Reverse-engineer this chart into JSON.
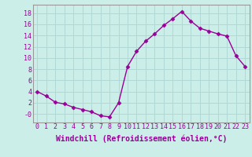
{
  "x": [
    0,
    1,
    2,
    3,
    4,
    5,
    6,
    7,
    8,
    9,
    10,
    11,
    12,
    13,
    14,
    15,
    16,
    17,
    18,
    19,
    20,
    21,
    22,
    23
  ],
  "y": [
    4.0,
    3.2,
    2.1,
    1.8,
    1.2,
    0.8,
    0.4,
    -0.3,
    -0.5,
    2.0,
    8.5,
    11.2,
    13.0,
    14.3,
    15.8,
    17.0,
    18.3,
    16.6,
    15.3,
    14.8,
    14.3,
    13.9,
    10.4,
    8.5
  ],
  "line_color": "#990099",
  "marker": "D",
  "markersize": 2.5,
  "linewidth": 1.0,
  "bg_color": "#cceee8",
  "grid_color": "#b0d8d4",
  "xlabel": "Windchill (Refroidissement éolien,°C)",
  "xlim": [
    -0.5,
    23.5
  ],
  "ylim": [
    -1.5,
    19.5
  ],
  "yticks": [
    0,
    2,
    4,
    6,
    8,
    10,
    12,
    14,
    16,
    18
  ],
  "ytick_labels": [
    "-0",
    "2",
    "4",
    "6",
    "8",
    "10",
    "12",
    "14",
    "16",
    "18"
  ],
  "xticks": [
    0,
    1,
    2,
    3,
    4,
    5,
    6,
    7,
    8,
    9,
    10,
    11,
    12,
    13,
    14,
    15,
    16,
    17,
    18,
    19,
    20,
    21,
    22,
    23
  ],
  "tick_fontsize": 6.0,
  "xlabel_fontsize": 7.0,
  "tick_color": "#990099",
  "label_color": "#990099"
}
